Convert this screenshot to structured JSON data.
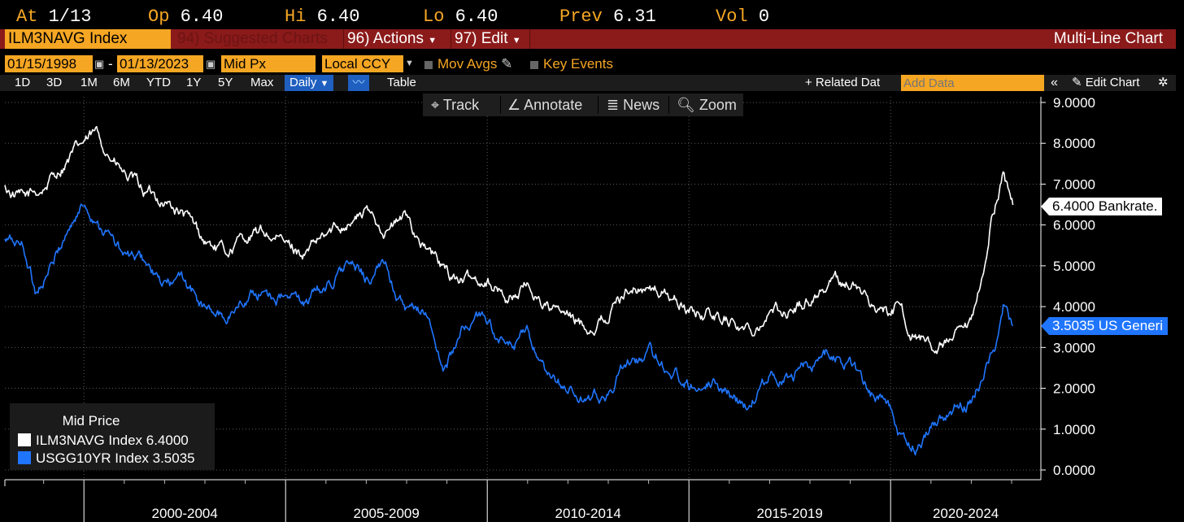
{
  "quote": {
    "at_label": "At",
    "at_value": "1/13",
    "open_label": "Op",
    "open_value": "6.40",
    "high_label": "Hi",
    "high_value": "6.40",
    "low_label": "Lo",
    "low_value": "6.40",
    "prev_label": "Prev",
    "prev_value": "6.31",
    "vol_label": "Vol",
    "vol_value": "0"
  },
  "title_bar": {
    "ticker": "ILM3NAVG Index",
    "suggested": "94) Suggested Charts",
    "actions": "96) Actions",
    "edit": "97) Edit",
    "chart_kind": "Multi-Line Chart"
  },
  "controls": {
    "start_date": "01/15/1998",
    "end_date": "01/13/2023",
    "price_field": "Mid Px",
    "currency": "Local CCY",
    "mov_avgs": "Mov Avgs",
    "key_events": "Key Events"
  },
  "range_bar": {
    "ranges": [
      "1D",
      "3D",
      "1M",
      "6M",
      "YTD",
      "1Y",
      "5Y",
      "Max"
    ],
    "period": "Daily",
    "table": "Table",
    "related": "+ Related Dat",
    "add_data_placeholder": "Add Data",
    "edit_chart": "Edit Chart"
  },
  "tools": {
    "track": "Track",
    "annotate": "Annotate",
    "news": "News",
    "zoom": "Zoom"
  },
  "legend": {
    "header": "Mid Price",
    "items": [
      {
        "label": "ILM3NAVG Index 6.4000",
        "color": "#ffffff"
      },
      {
        "label": "USGG10YR Index 3.5035",
        "color": "#1f75fe"
      }
    ]
  },
  "tags": {
    "white": "6.4000 Bankrate.",
    "blue": "3.5035 US Generi"
  },
  "colors": {
    "accent": "#f5a623",
    "title_bar": "#8b1a1a",
    "series_blue": "#1f75fe"
  },
  "chart_data": {
    "type": "line",
    "x_ticks": [
      "2000-2004",
      "2005-2009",
      "2010-2014",
      "2015-2019",
      "2020-2024"
    ],
    "y_ticks": [
      "0.0000",
      "1.0000",
      "2.0000",
      "3.0000",
      "4.0000",
      "5.0000",
      "6.0000",
      "7.0000",
      "8.0000",
      "9.0000"
    ],
    "ylim": [
      0,
      9
    ],
    "xlim": [
      1998.04,
      2023.04
    ],
    "grid": true,
    "series": [
      {
        "name": "ILM3NAVG Index",
        "color": "#ffffff",
        "x": [
          1998.04,
          1998.5,
          1999.0,
          1999.5,
          2000.0,
          2000.3,
          2000.6,
          2001.0,
          2001.5,
          2002.0,
          2002.5,
          2003.0,
          2003.5,
          2004.0,
          2004.5,
          2005.0,
          2005.5,
          2006.0,
          2006.5,
          2007.0,
          2007.5,
          2008.0,
          2008.5,
          2009.0,
          2009.5,
          2010.0,
          2010.5,
          2011.0,
          2011.5,
          2012.0,
          2012.5,
          2013.0,
          2013.5,
          2014.0,
          2014.5,
          2015.0,
          2015.5,
          2016.0,
          2016.5,
          2017.0,
          2017.5,
          2018.0,
          2018.5,
          2019.0,
          2019.5,
          2020.0,
          2020.2,
          2020.5,
          2021.0,
          2021.5,
          2022.0,
          2022.3,
          2022.5,
          2022.8,
          2023.04
        ],
        "values": [
          6.9,
          6.6,
          6.9,
          7.5,
          8.0,
          8.2,
          7.8,
          7.2,
          6.8,
          6.6,
          6.2,
          5.6,
          5.3,
          5.7,
          5.8,
          5.5,
          5.3,
          5.7,
          6.1,
          6.3,
          5.9,
          6.2,
          5.4,
          4.8,
          4.6,
          4.7,
          4.2,
          4.5,
          4.0,
          3.7,
          3.5,
          3.8,
          4.5,
          4.4,
          4.3,
          3.9,
          3.8,
          3.7,
          3.4,
          3.9,
          3.9,
          4.2,
          4.6,
          4.6,
          4.1,
          3.8,
          4.0,
          3.4,
          3.0,
          3.1,
          3.4,
          4.7,
          6.2,
          7.3,
          6.4
        ]
      },
      {
        "name": "USGG10YR Index",
        "color": "#1f75fe",
        "x": [
          1998.04,
          1998.5,
          1998.8,
          1999.2,
          1999.6,
          2000.0,
          2000.3,
          2000.6,
          2001.0,
          2001.5,
          2001.9,
          2002.5,
          2003.0,
          2003.5,
          2004.0,
          2004.5,
          2005.0,
          2005.5,
          2006.0,
          2006.5,
          2007.0,
          2007.5,
          2008.0,
          2008.5,
          2008.9,
          2009.5,
          2010.0,
          2010.5,
          2011.0,
          2011.5,
          2012.0,
          2012.5,
          2013.0,
          2013.5,
          2014.0,
          2014.5,
          2015.0,
          2015.5,
          2016.0,
          2016.5,
          2017.0,
          2017.5,
          2018.0,
          2018.5,
          2019.0,
          2019.5,
          2020.0,
          2020.3,
          2020.6,
          2021.0,
          2021.5,
          2022.0,
          2022.3,
          2022.6,
          2022.8,
          2023.04
        ],
        "values": [
          5.6,
          5.5,
          4.4,
          5.0,
          5.9,
          6.5,
          6.2,
          5.8,
          5.2,
          5.1,
          4.5,
          4.6,
          3.9,
          3.7,
          4.2,
          4.4,
          4.2,
          4.1,
          4.5,
          5.0,
          4.7,
          5.0,
          3.8,
          3.9,
          2.4,
          3.6,
          3.7,
          2.9,
          3.3,
          2.1,
          2.0,
          1.6,
          1.9,
          2.6,
          2.9,
          2.5,
          2.1,
          2.3,
          1.9,
          1.5,
          2.4,
          2.3,
          2.6,
          2.9,
          2.6,
          1.9,
          1.6,
          0.7,
          0.6,
          1.1,
          1.5,
          1.7,
          2.4,
          3.0,
          4.1,
          3.5
        ]
      }
    ]
  }
}
